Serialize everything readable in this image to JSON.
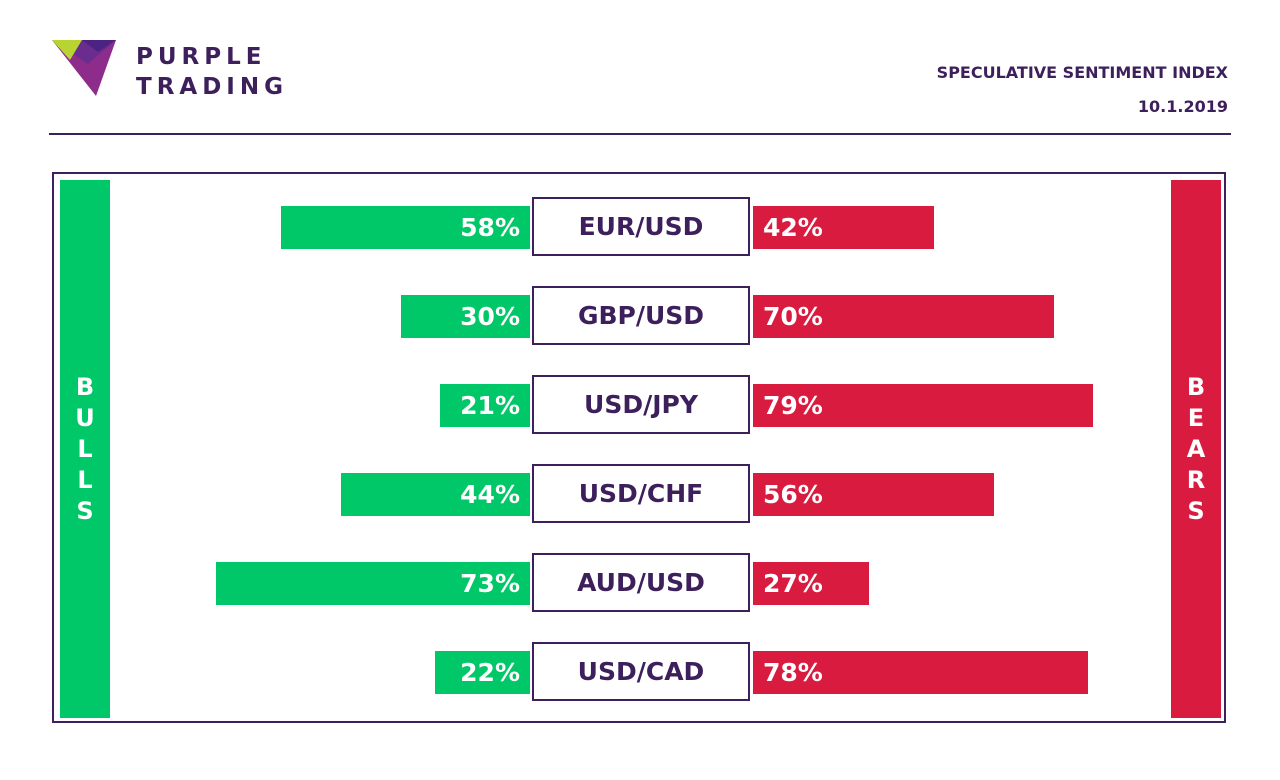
{
  "brand": {
    "line1": "PURPLE",
    "line2": "TRADING"
  },
  "header": {
    "title": "SPECULATIVE SENTIMENT INDEX",
    "date": "10.1.2019"
  },
  "side_labels": {
    "bulls": [
      "B",
      "U",
      "L",
      "L",
      "S"
    ],
    "bears": [
      "B",
      "E",
      "A",
      "R",
      "S"
    ]
  },
  "colors": {
    "bulls": "#00c767",
    "bears": "#da1b40",
    "brand": "#3d1f5c"
  },
  "chart_data": {
    "type": "bar",
    "categories": [
      "EUR/USD",
      "GBP/USD",
      "USD/JPY",
      "USD/CHF",
      "AUD/USD",
      "USD/CAD"
    ],
    "series": [
      {
        "name": "BULLS",
        "values": [
          58,
          30,
          21,
          44,
          73,
          22
        ]
      },
      {
        "name": "BEARS",
        "values": [
          42,
          70,
          79,
          56,
          27,
          78
        ]
      }
    ],
    "bull_labels": [
      "58%",
      "30%",
      "21%",
      "44%",
      "73%",
      "22%"
    ],
    "bear_labels": [
      "42%",
      "70%",
      "79%",
      "56%",
      "27%",
      "78%"
    ],
    "unit": "%"
  }
}
